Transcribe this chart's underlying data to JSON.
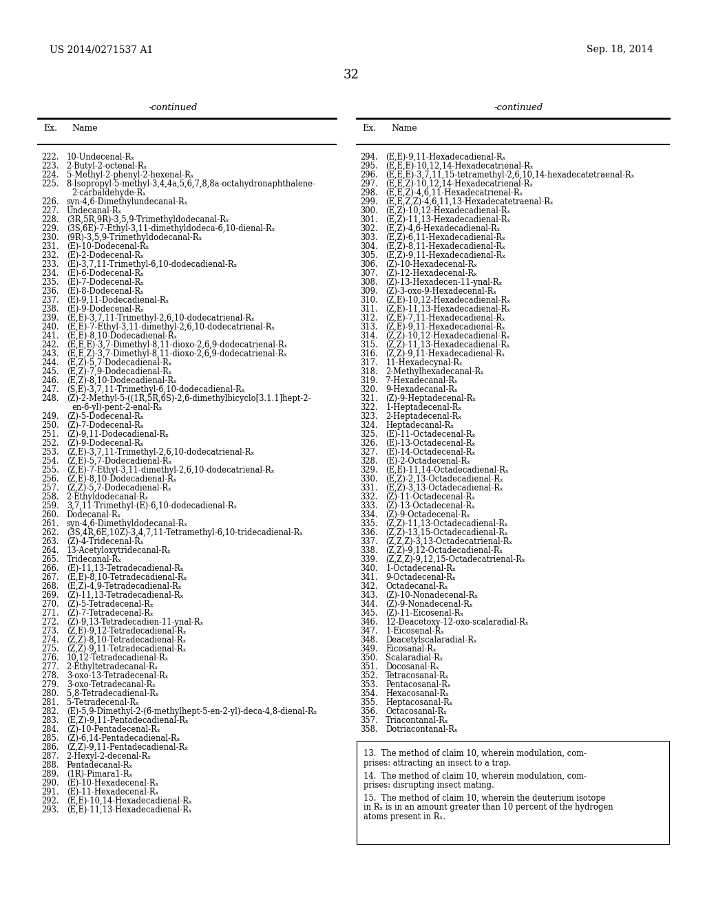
{
  "header_left": "US 2014/0271537 A1",
  "header_right": "Sep. 18, 2014",
  "page_number": "32",
  "continued_label": "-continued",
  "col1_header_ex": "Ex.",
  "col1_header_name": "Name",
  "col2_header_ex": "Ex.",
  "col2_header_name": "Name",
  "left_entries": [
    [
      "222.",
      "10-Undecenal-Rₓ"
    ],
    [
      "223.",
      "2-Butyl-2-octenal-Rₓ"
    ],
    [
      "224.",
      "5-Methyl-2-phenyl-2-hexenal-Rₓ"
    ],
    [
      "225.",
      "8-Isopropyl-5-methyl-3,4,4a,5,6,7,8,8a-octahydronaphthalene-\n        2-carbaldehyde-Rₓ"
    ],
    [
      "226.",
      "syn-4,6-Dimethylundecanal-Rₓ"
    ],
    [
      "227.",
      "Undecanal-Rₓ"
    ],
    [
      "228.",
      "(3R,5R,9R)-3,5,9-Trimethyldodecanal-Rₓ"
    ],
    [
      "229.",
      "(3S,6E)-7-Ethyl-3,11-dimethyldodeca-6,10-dienal-Rₓ"
    ],
    [
      "230.",
      "(9R)-3,5,9-Trimethyldodecanal-Rₓ"
    ],
    [
      "231.",
      "(E)-10-Dodecenal-Rₓ"
    ],
    [
      "232.",
      "(E)-2-Dodecenal-Rₓ"
    ],
    [
      "233.",
      "(E)-3,7,11-Trimethyl-6,10-dodecadienal-Rₓ"
    ],
    [
      "234.",
      "(E)-6-Dodecenal-Rₓ"
    ],
    [
      "235.",
      "(E)-7-Dodecenal-Rₓ"
    ],
    [
      "236.",
      "(E)-8-Dodecenal-Rₓ"
    ],
    [
      "237.",
      "(E)-9,11-Dodecadienal-Rₓ"
    ],
    [
      "238.",
      "(E)-9-Dodecenal-Rₓ"
    ],
    [
      "239.",
      "(E,E)-3,7,11-Trimethyl-2,6,10-dodecatrienal-Rₓ"
    ],
    [
      "240.",
      "(E,E)-7-Ethyl-3,11-dimethyl-2,6,10-dodecatrienal-Rₓ"
    ],
    [
      "241.",
      "(E,E)-8,10-Dodecadienal-Rₓ"
    ],
    [
      "242.",
      "(E,E,E)-3,7-Dimethyl-8,11-dioxo-2,6,9-dodecatrienal-Rₓ"
    ],
    [
      "243.",
      "(E,E,Z)-3,7-Dimethyl-8,11-dioxo-2,6,9-dodecatrienal-Rₓ"
    ],
    [
      "244.",
      "(E,Z)-5,7-Dodecadienal-Rₓ"
    ],
    [
      "245.",
      "(E,Z)-7,9-Dodecadienal-Rₓ"
    ],
    [
      "246.",
      "(E,Z)-8,10-Dodecadienal-Rₓ"
    ],
    [
      "247.",
      "(S,E)-3,7,11-Trimethyl-6,10-dodecadienal-Rₓ"
    ],
    [
      "248.",
      "(Z)-2-Methyl-5-((1R,5R,6S)-2,6-dimethylbicyclo[3.1.1]hept-2-\n        en-6-yl)-pent-2-enal-Rₓ"
    ],
    [
      "249.",
      "(Z)-5-Dodecenal-Rₓ"
    ],
    [
      "250.",
      "(Z)-7-Dodecenal-Rₓ"
    ],
    [
      "251.",
      "(Z)-9,11-Dodecadienal-Rₓ"
    ],
    [
      "252.",
      "(Z)-9-Dodecenal-Rₓ"
    ],
    [
      "253.",
      "(Z,E)-3,7,11-Trimethyl-2,6,10-dodecatrienal-Rₓ"
    ],
    [
      "254.",
      "(Z,E)-5,7-Dodecadienal-Rₓ"
    ],
    [
      "255.",
      "(Z,E)-7-Ethyl-3,11-dimethyl-2,6,10-dodecatrienal-Rₓ"
    ],
    [
      "256.",
      "(Z,E)-8,10-Dodecadienal-Rₓ"
    ],
    [
      "257.",
      "(Z,Z)-5,7-Dodecadienal-Rₓ"
    ],
    [
      "258.",
      "2-Ethyldodecanal-Rₓ"
    ],
    [
      "259.",
      "3,7,11-Trimethyl-(E)-6,10-dodecadienal-Rₓ"
    ],
    [
      "260.",
      "Dodecanal-Rₓ"
    ],
    [
      "261.",
      "syn-4,6-Dimethyldodecanal-Rₓ"
    ],
    [
      "262.",
      "(3S,4R,6E,10Z)-3,4,7,11-Tetramethyl-6,10-tridecadienal-Rₓ"
    ],
    [
      "263.",
      "(Z)-4-Tridecenal-Rₓ"
    ],
    [
      "264.",
      "13-Acetyloxytridecanal-Rₓ"
    ],
    [
      "265.",
      "Tridecanal-Rₓ"
    ],
    [
      "266.",
      "(E)-11,13-Tetradecadienal-Rₓ"
    ],
    [
      "267.",
      "(E,E)-8,10-Tetradecadienal-Rₓ"
    ],
    [
      "268.",
      "(E,Z)-4,9-Tetradecadienal-Rₓ"
    ],
    [
      "269.",
      "(Z)-11,13-Tetradecadienal-Rₓ"
    ],
    [
      "270.",
      "(Z)-5-Tetradecenal-Rₓ"
    ],
    [
      "271.",
      "(Z)-7-Tetradecenal-Rₓ"
    ],
    [
      "272.",
      "(Z)-9,13-Tetradecadien-11-ynal-Rₓ"
    ],
    [
      "273.",
      "(Z,E)-9,12-Tetradecadienal-Rₓ"
    ],
    [
      "274.",
      "(Z,Z)-8,10-Tetradecadienal-Rₓ"
    ],
    [
      "275.",
      "(Z,Z)-9,11-Tetradecadienal-Rₓ"
    ],
    [
      "276.",
      "10,12-Tetradecadienal-Rₓ"
    ],
    [
      "277.",
      "2-Ethyltetradecanal-Rₓ"
    ],
    [
      "278.",
      "3-oxo-13-Tetradecenal-Rₓ"
    ],
    [
      "279.",
      "3-oxo-Tetradecanal-Rₓ"
    ],
    [
      "280.",
      "5,8-Tetradecadienal-Rₓ"
    ],
    [
      "281.",
      "5-Tetradecenal-Rₓ"
    ],
    [
      "282.",
      "(E)-5,9-Dimethyl-2-(6-methylhept-5-en-2-yl)-deca-4,8-dienal-Rₓ"
    ],
    [
      "283.",
      "(E,Z)-9,11-Pentadecadienal-Rₓ"
    ],
    [
      "284.",
      "(Z)-10-Pentadecenal-Rₓ"
    ],
    [
      "285.",
      "(Z)-6,14-Pentadecadienal-Rₓ"
    ],
    [
      "286.",
      "(Z,Z)-9,11-Pentadecadienal-Rₓ"
    ],
    [
      "287.",
      "2-Hexyl-2-decenal-Rₓ"
    ],
    [
      "288.",
      "Pentadecanal-Rₓ"
    ],
    [
      "289.",
      "(1R)-Pimara1-Rₓ"
    ],
    [
      "290.",
      "(E)-10-Hexadecenal-Rₓ"
    ],
    [
      "291.",
      "(E)-11-Hexadecenal-Rₓ"
    ],
    [
      "292.",
      "(E,E)-10,14-Hexadecadienal-Rₓ"
    ],
    [
      "293.",
      "(E,E)-11,13-Hexadecadienal-Rₓ"
    ]
  ],
  "right_entries": [
    [
      "294.",
      "(E,E)-9,11-Hexadecadienal-Rₓ"
    ],
    [
      "295.",
      "(E,E,E)-10,12,14-Hexadecatrienal-Rₓ"
    ],
    [
      "296.",
      "(E,E,E)-3,7,11,15-tetramethyl-2,6,10,14-hexadecatetraenal-Rₓ"
    ],
    [
      "297.",
      "(E,E,Z)-10,12,14-Hexadecatrienal-Rₓ"
    ],
    [
      "298.",
      "(E,E,Z)-4,6,11-Hexadecatrienal-Rₓ"
    ],
    [
      "299.",
      "(E,E,Z,Z)-4,6,11,13-Hexadecatetraenal-Rₓ"
    ],
    [
      "300.",
      "(E,Z)-10,12-Hexadecadienal-Rₓ"
    ],
    [
      "301.",
      "(E,Z)-11,13-Hexadecadienal-Rₓ"
    ],
    [
      "302.",
      "(E,Z)-4,6-Hexadecadienal-Rₓ"
    ],
    [
      "303.",
      "(E,Z)-6,11-Hexadecadienal-Rₓ"
    ],
    [
      "304.",
      "(E,Z)-8,11-Hexadecadienal-Rₓ"
    ],
    [
      "305.",
      "(E,Z)-9,11-Hexadecadienal-Rₓ"
    ],
    [
      "306.",
      "(Z)-10-Hexadecenal-Rₓ"
    ],
    [
      "307.",
      "(Z)-12-Hexadecenal-Rₓ"
    ],
    [
      "308.",
      "(Z)-13-Hexadecen-11-ynal-Rₓ"
    ],
    [
      "309.",
      "(Z)-3-oxo-9-Hexadecenal-Rₓ"
    ],
    [
      "310.",
      "(Z,E)-10,12-Hexadecadienal-Rₓ"
    ],
    [
      "311.",
      "(Z,E)-11,13-Hexadecadienal-Rₓ"
    ],
    [
      "312.",
      "(Z,E)-7,11-Hexadecadienal-Rₓ"
    ],
    [
      "313.",
      "(Z,E)-9,11-Hexadecadienal-Rₓ"
    ],
    [
      "314.",
      "(Z,Z)-10,12-Hexadecadienal-Rₓ"
    ],
    [
      "315.",
      "(Z,Z)-11,13-Hexadecadienal-Rₓ"
    ],
    [
      "316.",
      "(Z,Z)-9,11-Hexadecadienal-Rₓ"
    ],
    [
      "317.",
      "11-Hexadecynal-Rₓ"
    ],
    [
      "318.",
      "2-Methylhexadecanal-Rₓ"
    ],
    [
      "319.",
      "7-Hexadecanal-Rₓ"
    ],
    [
      "320.",
      "9-Hexadecanal-Rₓ"
    ],
    [
      "321.",
      "(Z)-9-Heptadecenal-Rₓ"
    ],
    [
      "322.",
      "1-Heptadecenal-Rₓ"
    ],
    [
      "323.",
      "2-Heptadecenal-Rₓ"
    ],
    [
      "324.",
      "Heptadecanal-Rₓ"
    ],
    [
      "325.",
      "(E)-11-Octadecenal-Rₓ"
    ],
    [
      "326.",
      "(E)-13-Octadecenal-Rₓ"
    ],
    [
      "327.",
      "(E)-14-Octadecenal-Rₓ"
    ],
    [
      "328.",
      "(E)-2-Octadecenal-Rₓ"
    ],
    [
      "329.",
      "(E,E)-11,14-Octadecadienal-Rₓ"
    ],
    [
      "330.",
      "(E,Z)-2,13-Octadecadienal-Rₓ"
    ],
    [
      "331.",
      "(E,Z)-3,13-Octadecadienal-Rₓ"
    ],
    [
      "332.",
      "(Z)-11-Octadecenal-Rₓ"
    ],
    [
      "333.",
      "(Z)-13-Octadecenal-Rₓ"
    ],
    [
      "334.",
      "(Z)-9-Octadecenal-Rₓ"
    ],
    [
      "335.",
      "(Z,Z)-11,13-Octadecadienal-Rₓ"
    ],
    [
      "336.",
      "(Z,Z)-13,15-Octadecadienal-Rₓ"
    ],
    [
      "337.",
      "(Z,Z,Z)-3,13-Octadecatrienal-Rₓ"
    ],
    [
      "338.",
      "(Z,Z)-9,12-Octadecadienal-Rₓ"
    ],
    [
      "339.",
      "(Z,Z,Z)-9,12,15-Octadecatrienal-Rₓ"
    ],
    [
      "340.",
      "1-Octadecenal-Rₓ"
    ],
    [
      "341.",
      "9-Octadecenal-Rₓ"
    ],
    [
      "342.",
      "Octadecanal-Rₓ"
    ],
    [
      "343.",
      "(Z)-10-Nonadecenal-Rₓ"
    ],
    [
      "344.",
      "(Z)-9-Nonadecenal-Rₓ"
    ],
    [
      "345.",
      "(Z)-11-Eicosenal-Rₓ"
    ],
    [
      "346.",
      "12-Deacetoxy-12-oxo-scalaradial-Rₓ"
    ],
    [
      "347.",
      "1-Eicosenal-Rₓ"
    ],
    [
      "348.",
      "Deacetylscalaradial-Rₓ"
    ],
    [
      "349.",
      "Eicosanal-Rₓ"
    ],
    [
      "350.",
      "Scalaradial-Rₓ"
    ],
    [
      "351.",
      "Docosanal-Rₓ"
    ],
    [
      "352.",
      "Tetracosanal-Rₓ"
    ],
    [
      "353.",
      "Pentacosanal-Rₓ"
    ],
    [
      "354.",
      "Hexacosanal-Rₓ"
    ],
    [
      "355.",
      "Heptacosanal-Rₓ"
    ],
    [
      "356.",
      "Octacosanal-Rₓ"
    ],
    [
      "357.",
      "Triacontanal-Rₓ"
    ],
    [
      "358.",
      "Dotriacontanal-Rₓ"
    ]
  ],
  "claims_text": [
    "13.  The method of claim 10, wherein modulation, com-",
    "prises: attracting an insect to a trap.",
    "",
    "14.  The method of claim 10, wherein modulation, com-",
    "prises: disrupting insect mating.",
    "",
    "15.  The method of claim 10, wherein the deuterium isotope",
    "in Rₓ is in an amount greater than 10 percent of the hydrogen",
    "atoms present in Rₓ."
  ]
}
